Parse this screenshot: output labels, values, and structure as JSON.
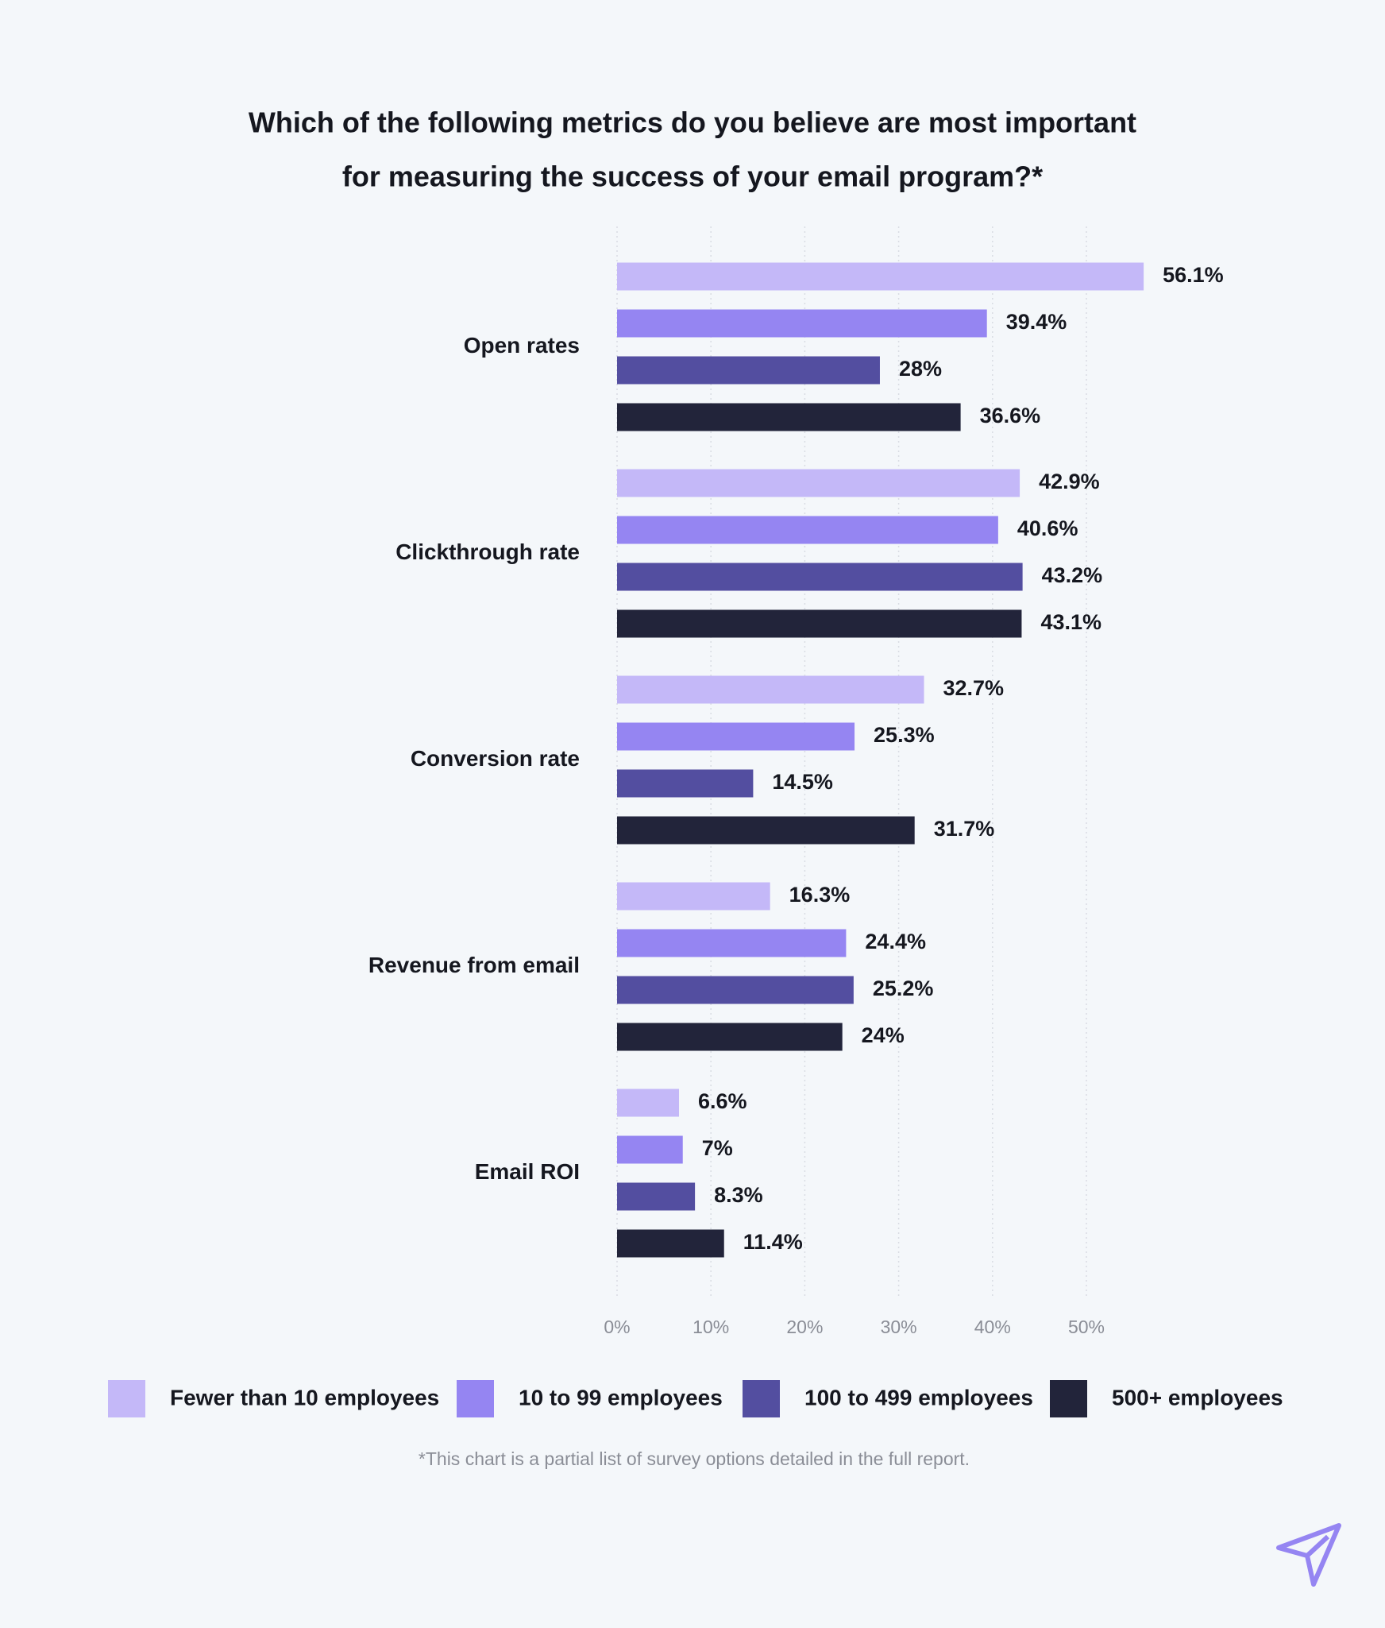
{
  "chart_data": {
    "type": "bar",
    "orientation": "horizontal",
    "title": [
      "Which of the following metrics do you believe are most important",
      "for measuring the success of your email program?*"
    ],
    "categories": [
      "Open rates",
      "Clickthrough rate",
      "Conversion rate",
      "Revenue from email",
      "Email ROI"
    ],
    "series": [
      {
        "name": "Fewer than 10 employees",
        "color": "#c4b8f8",
        "values": [
          56.1,
          42.9,
          32.7,
          16.3,
          6.6
        ],
        "value_labels": [
          "56.1%",
          "42.9%",
          "32.7%",
          "16.3%",
          "6.6%"
        ]
      },
      {
        "name": "10 to 99 employees",
        "color": "#9585f2",
        "values": [
          39.4,
          40.6,
          25.3,
          24.4,
          7
        ],
        "value_labels": [
          "39.4%",
          "40.6%",
          "25.3%",
          "24.4%",
          "7%"
        ]
      },
      {
        "name": "100 to 499 employees",
        "color": "#534ea0",
        "values": [
          28,
          43.2,
          14.5,
          25.2,
          8.3
        ],
        "value_labels": [
          "28%",
          "43.2%",
          "14.5%",
          "25.2%",
          "8.3%"
        ]
      },
      {
        "name": "500+ employees",
        "color": "#22243a",
        "values": [
          36.6,
          43.1,
          31.7,
          24,
          11.4
        ],
        "value_labels": [
          "36.6%",
          "43.1%",
          "31.7%",
          "24%",
          "11.4%"
        ]
      }
    ],
    "xlim": [
      0,
      50
    ],
    "xticks": [
      {
        "value": 0,
        "label": "0%"
      },
      {
        "value": 10,
        "label": "10%"
      },
      {
        "value": 20,
        "label": "20%"
      },
      {
        "value": 30,
        "label": "30%"
      },
      {
        "value": 40,
        "label": "40%"
      },
      {
        "value": 50,
        "label": "50%"
      }
    ],
    "grid": true,
    "footnote": "*This chart is a partial list of survey options detailed in the full report."
  }
}
